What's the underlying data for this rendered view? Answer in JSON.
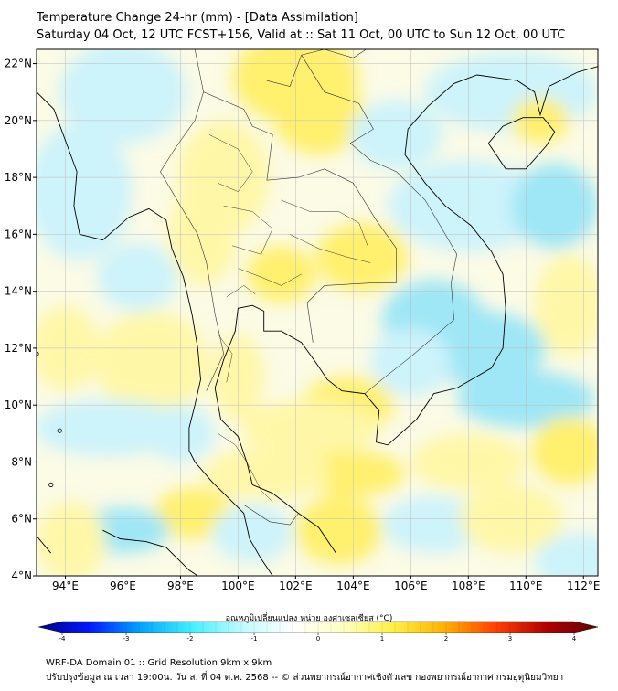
{
  "title": {
    "line1": "Temperature Change 24-hr (mm) - [Data Assimilation]",
    "line2": "Saturday 04 Oct, 12 UTC FCST+156, Valid at :: Sat 11 Oct, 00 UTC to Sun 12 Oct, 00 UTC"
  },
  "map": {
    "lat_range": [
      4,
      22.5
    ],
    "lon_range": [
      93,
      112.5
    ],
    "lat_ticks": [
      {
        "value": 4,
        "label": "4°N"
      },
      {
        "value": 6,
        "label": "6°N"
      },
      {
        "value": 8,
        "label": "8°N"
      },
      {
        "value": 10,
        "label": "10°N"
      },
      {
        "value": 12,
        "label": "12°N"
      },
      {
        "value": 14,
        "label": "14°N"
      },
      {
        "value": 16,
        "label": "16°N"
      },
      {
        "value": 18,
        "label": "18°N"
      },
      {
        "value": 20,
        "label": "20°N"
      },
      {
        "value": 22,
        "label": "22°N"
      }
    ],
    "lon_ticks": [
      {
        "value": 94,
        "label": "94°E"
      },
      {
        "value": 96,
        "label": "96°E"
      },
      {
        "value": 98,
        "label": "98°E"
      },
      {
        "value": 100,
        "label": "100°E"
      },
      {
        "value": 102,
        "label": "102°E"
      },
      {
        "value": 104,
        "label": "104°E"
      },
      {
        "value": 106,
        "label": "106°E"
      },
      {
        "value": 108,
        "label": "108°E"
      },
      {
        "value": 110,
        "label": "110°E"
      },
      {
        "value": 112,
        "label": "112°E"
      }
    ],
    "field_colors": {
      "background": "#fbfbe6",
      "warm_light": "#fff7a8",
      "warm": "#fff06e",
      "cool_light": "#cdf3fb",
      "cool": "#9fe6f6",
      "cool_strong": "#7fd8f2"
    },
    "coast_color": "#000000",
    "border_color": "#333333"
  },
  "colorbar": {
    "title": "อุณหภูมิเปลี่ยนแปลง หน่วย องศาเซลเซียส (°C)",
    "range": [
      -4,
      4
    ],
    "ticks": [
      {
        "value": -4,
        "label": "-4"
      },
      {
        "value": -3,
        "label": "-3"
      },
      {
        "value": -2,
        "label": "-2"
      },
      {
        "value": -1,
        "label": "-1"
      },
      {
        "value": 0,
        "label": "0"
      },
      {
        "value": 1,
        "label": "1"
      },
      {
        "value": 2,
        "label": "2"
      },
      {
        "value": 3,
        "label": "3"
      },
      {
        "value": 4,
        "label": "4"
      }
    ],
    "colors": [
      "#00007f",
      "#0019ff",
      "#00a4ff",
      "#40f0ff",
      "#c0fbff",
      "#ffffff",
      "#ffffc0",
      "#fff040",
      "#ffb000",
      "#ff4000",
      "#b00000",
      "#600000"
    ]
  },
  "footer": {
    "line1": "WRF-DA Domain 01 :: Grid Resolution 9km x 9km",
    "line2": "ปรับปรุงข้อมูล ณ เวลา 19:00น. วัน ส. ที่ 04 ต.ค. 2568 -- © ส่วนพยากรณ์อากาศเชิงตัวเลข กองพยากรณ์อากาศ กรมอุตุนิยมวิทยา"
  }
}
